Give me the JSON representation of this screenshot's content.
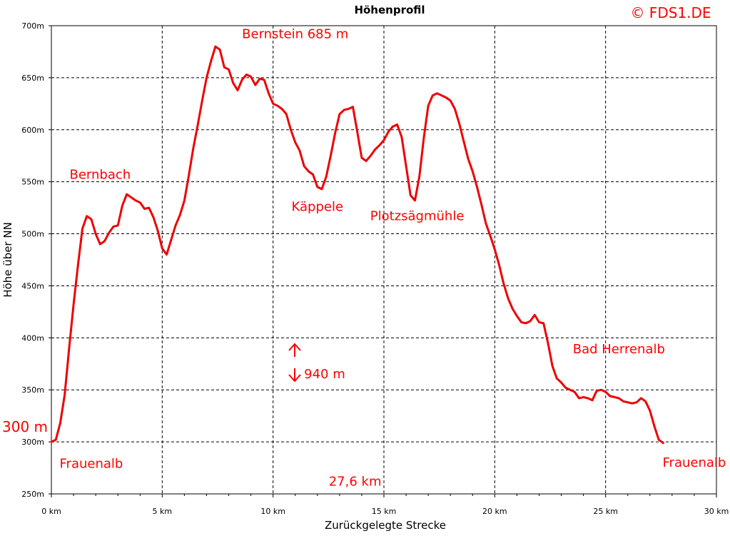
{
  "chart_data": {
    "type": "line",
    "title": "Höhenprofil",
    "copyright": "© FDS1.DE",
    "xlabel": "Zurückgelegte Strecke",
    "ylabel": "Höhe über NN",
    "xlim": [
      0,
      30
    ],
    "ylim": [
      250,
      700
    ],
    "grid": true,
    "x_ticks": [
      "0 km",
      "5 km",
      "10 km",
      "15 km",
      "20 km",
      "25 km",
      "30 km"
    ],
    "y_ticks": [
      "250m",
      "300m",
      "350m",
      "400m",
      "450m",
      "500m",
      "550m",
      "600m",
      "650m",
      "700m"
    ],
    "series": [
      {
        "color": "#ee0000",
        "points": [
          [
            0.0,
            300
          ],
          [
            0.2,
            302
          ],
          [
            0.4,
            318
          ],
          [
            0.6,
            345
          ],
          [
            0.8,
            390
          ],
          [
            1.0,
            432
          ],
          [
            1.2,
            470
          ],
          [
            1.4,
            505
          ],
          [
            1.6,
            517
          ],
          [
            1.8,
            514
          ],
          [
            2.0,
            500
          ],
          [
            2.2,
            490
          ],
          [
            2.4,
            493
          ],
          [
            2.6,
            501
          ],
          [
            2.8,
            507
          ],
          [
            3.0,
            508
          ],
          [
            3.2,
            527
          ],
          [
            3.4,
            538
          ],
          [
            3.6,
            535
          ],
          [
            3.8,
            532
          ],
          [
            4.0,
            530
          ],
          [
            4.2,
            524
          ],
          [
            4.4,
            525
          ],
          [
            4.6,
            516
          ],
          [
            4.8,
            503
          ],
          [
            5.0,
            486
          ],
          [
            5.2,
            480
          ],
          [
            5.4,
            494
          ],
          [
            5.6,
            508
          ],
          [
            5.8,
            518
          ],
          [
            6.0,
            532
          ],
          [
            6.2,
            556
          ],
          [
            6.4,
            582
          ],
          [
            6.6,
            604
          ],
          [
            6.8,
            628
          ],
          [
            7.0,
            650
          ],
          [
            7.2,
            666
          ],
          [
            7.4,
            680
          ],
          [
            7.6,
            677
          ],
          [
            7.8,
            660
          ],
          [
            8.0,
            658
          ],
          [
            8.2,
            645
          ],
          [
            8.4,
            638
          ],
          [
            8.6,
            648
          ],
          [
            8.8,
            653
          ],
          [
            9.0,
            651
          ],
          [
            9.2,
            643
          ],
          [
            9.4,
            649
          ],
          [
            9.6,
            648
          ],
          [
            9.8,
            635
          ],
          [
            10.0,
            625
          ],
          [
            10.2,
            623
          ],
          [
            10.4,
            620
          ],
          [
            10.6,
            615
          ],
          [
            10.8,
            600
          ],
          [
            11.0,
            588
          ],
          [
            11.2,
            580
          ],
          [
            11.4,
            565
          ],
          [
            11.6,
            560
          ],
          [
            11.8,
            557
          ],
          [
            12.0,
            545
          ],
          [
            12.2,
            543
          ],
          [
            12.4,
            555
          ],
          [
            12.6,
            575
          ],
          [
            12.8,
            597
          ],
          [
            13.0,
            615
          ],
          [
            13.2,
            619
          ],
          [
            13.4,
            620
          ],
          [
            13.6,
            622
          ],
          [
            13.8,
            598
          ],
          [
            14.0,
            573
          ],
          [
            14.2,
            570
          ],
          [
            14.4,
            575
          ],
          [
            14.6,
            581
          ],
          [
            14.8,
            585
          ],
          [
            15.0,
            590
          ],
          [
            15.2,
            598
          ],
          [
            15.4,
            603
          ],
          [
            15.6,
            605
          ],
          [
            15.8,
            593
          ],
          [
            16.0,
            565
          ],
          [
            16.2,
            537
          ],
          [
            16.4,
            532
          ],
          [
            16.6,
            555
          ],
          [
            16.8,
            592
          ],
          [
            17.0,
            623
          ],
          [
            17.2,
            633
          ],
          [
            17.4,
            635
          ],
          [
            17.6,
            633
          ],
          [
            17.8,
            631
          ],
          [
            18.0,
            628
          ],
          [
            18.2,
            620
          ],
          [
            18.4,
            606
          ],
          [
            18.6,
            589
          ],
          [
            18.8,
            572
          ],
          [
            19.0,
            560
          ],
          [
            19.2,
            545
          ],
          [
            19.4,
            528
          ],
          [
            19.6,
            510
          ],
          [
            19.8,
            498
          ],
          [
            20.0,
            485
          ],
          [
            20.2,
            470
          ],
          [
            20.4,
            452
          ],
          [
            20.6,
            438
          ],
          [
            20.8,
            428
          ],
          [
            21.0,
            421
          ],
          [
            21.2,
            415
          ],
          [
            21.4,
            414
          ],
          [
            21.6,
            416
          ],
          [
            21.8,
            422
          ],
          [
            22.0,
            415
          ],
          [
            22.2,
            414
          ],
          [
            22.4,
            395
          ],
          [
            22.6,
            373
          ],
          [
            22.8,
            361
          ],
          [
            23.0,
            357
          ],
          [
            23.2,
            352
          ],
          [
            23.4,
            350
          ],
          [
            23.6,
            348
          ],
          [
            23.8,
            342
          ],
          [
            24.0,
            343
          ],
          [
            24.2,
            342
          ],
          [
            24.4,
            340
          ],
          [
            24.6,
            349
          ],
          [
            24.8,
            350
          ],
          [
            25.0,
            348
          ],
          [
            25.2,
            344
          ],
          [
            25.4,
            343
          ],
          [
            25.6,
            342
          ],
          [
            25.8,
            339
          ],
          [
            26.0,
            338
          ],
          [
            26.2,
            337
          ],
          [
            26.4,
            338
          ],
          [
            26.6,
            342
          ],
          [
            26.8,
            339
          ],
          [
            27.0,
            330
          ],
          [
            27.2,
            315
          ],
          [
            27.4,
            302
          ],
          [
            27.6,
            299
          ]
        ]
      }
    ],
    "annotations": [
      {
        "text": "Bernstein  685 m",
        "x": 11.0,
        "y": 688,
        "anchor": "middle"
      },
      {
        "text": "Bernbach",
        "x": 2.2,
        "y": 553,
        "anchor": "middle"
      },
      {
        "text": "Käppele",
        "x": 12.0,
        "y": 522,
        "anchor": "middle"
      },
      {
        "text": "Plotzsägmühle",
        "x": 16.5,
        "y": 513,
        "anchor": "middle"
      },
      {
        "text": "Bad Herrenalb",
        "x": 25.6,
        "y": 385,
        "anchor": "middle"
      },
      {
        "text": "940 m",
        "x": 11.4,
        "y": 361,
        "anchor": "start"
      },
      {
        "text": "Frauenalb",
        "x": 1.8,
        "y": 275,
        "anchor": "middle"
      },
      {
        "text": "Frauenalb",
        "x": 29.0,
        "y": 276,
        "anchor": "middle"
      },
      {
        "text": "27,6 km",
        "x": 13.7,
        "y": 258,
        "anchor": "middle"
      }
    ],
    "start_elevation_label": "300 m"
  }
}
